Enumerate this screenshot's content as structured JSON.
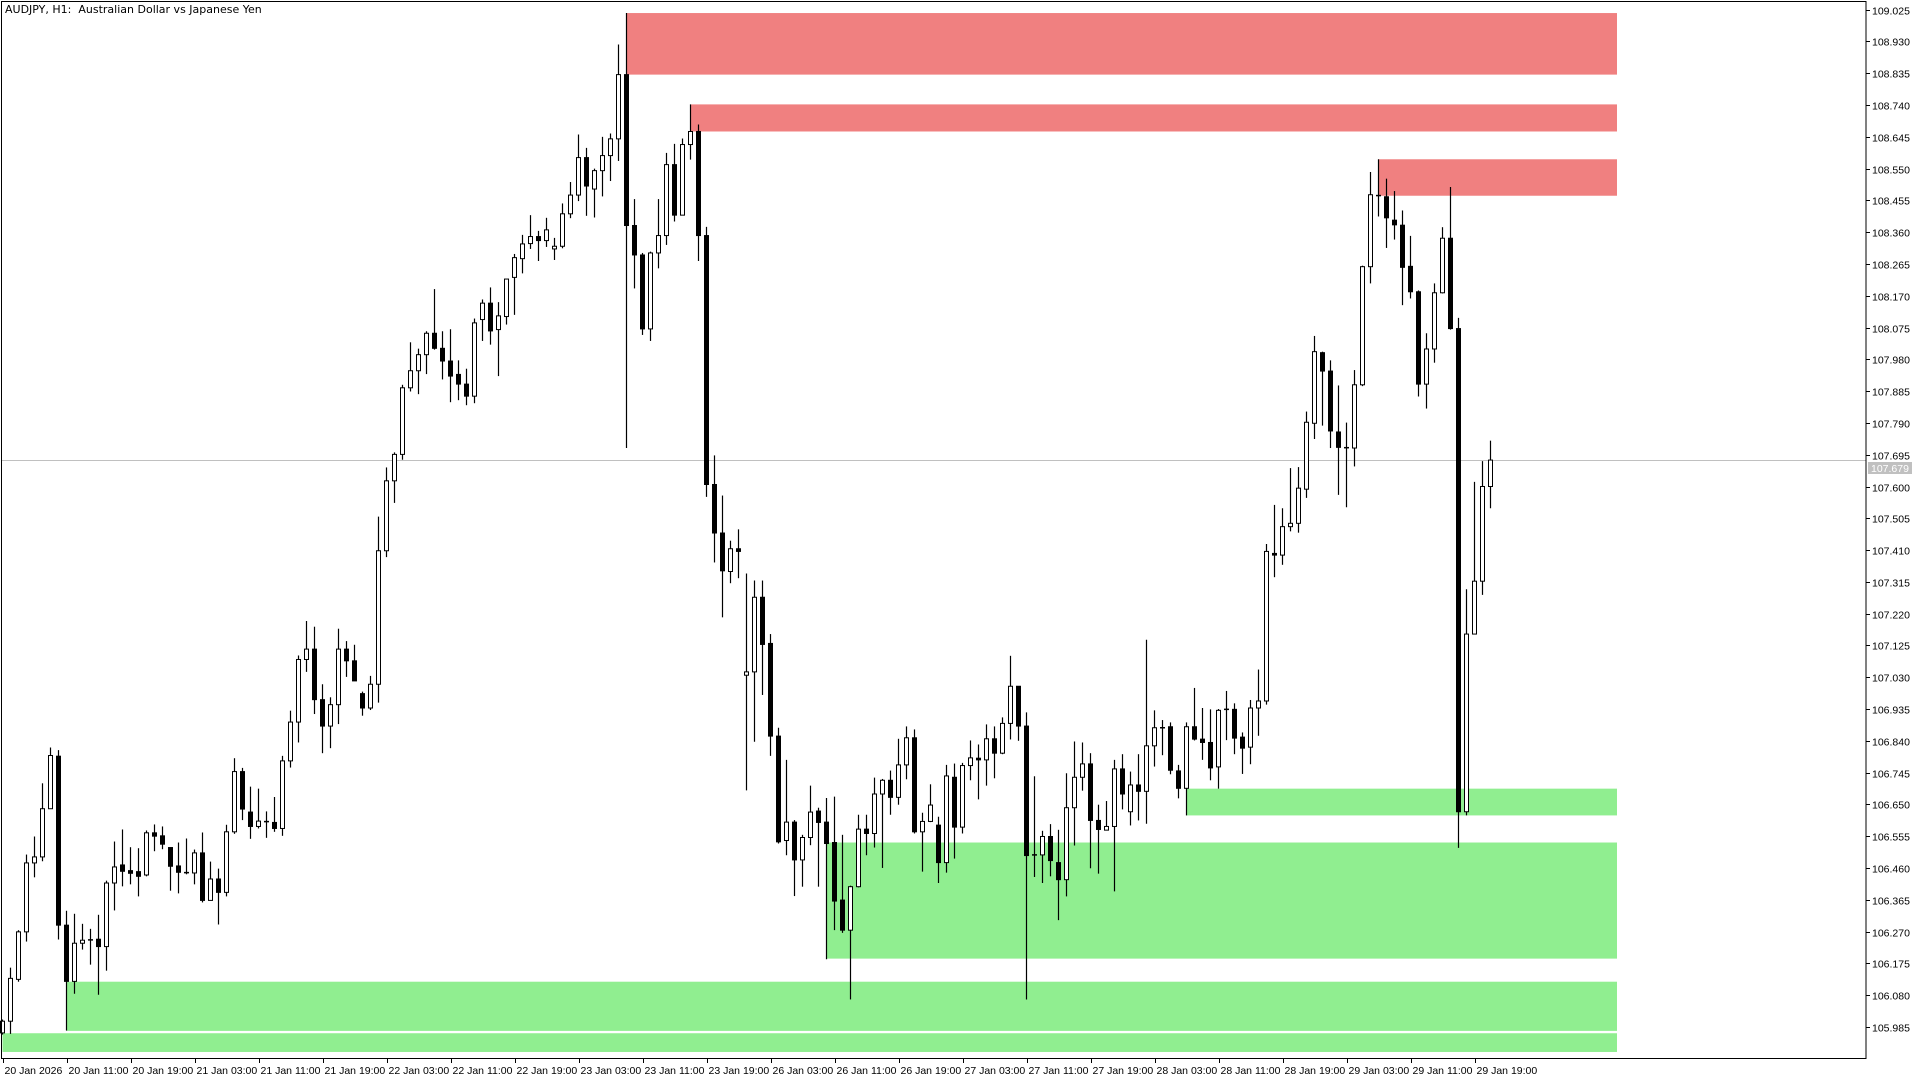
{
  "window": {
    "title": "AUDJPY, H1:  Australian Dollar vs Japanese Yen"
  },
  "chart_data": {
    "type": "candlestick",
    "symbol": "AUDJPY",
    "timeframe": "H1",
    "description": "Australian Dollar vs Japanese Yen",
    "ylim": [
      105.892,
      109.054
    ],
    "grid": false,
    "current_price": 107.679,
    "current_price_label": "107.679",
    "colors": {
      "bull_body": "#ffffff",
      "bear_body": "#000000",
      "outline": "#000000",
      "supply_zone": "#f08080",
      "demand_zone": "#90ee90",
      "price_line": "#c0c0c0"
    },
    "trading_days": [
      "20 Jan",
      "21 Jan",
      "22 Jan",
      "23 Jan",
      "26 Jan",
      "27 Jan",
      "28 Jan",
      "29 Jan"
    ],
    "first_bar_hour": 3,
    "y_ticks": [
      "109.025",
      "108.930",
      "108.835",
      "108.740",
      "108.645",
      "108.550",
      "108.455",
      "108.360",
      "108.265",
      "108.170",
      "108.075",
      "107.980",
      "107.885",
      "107.790",
      "107.695",
      "107.600",
      "107.505",
      "107.410",
      "107.315",
      "107.220",
      "107.125",
      "107.030",
      "106.935",
      "106.840",
      "106.745",
      "106.650",
      "106.555",
      "106.460",
      "106.365",
      "106.270",
      "106.175",
      "106.080",
      "105.985"
    ],
    "x_ticks": [
      "20 Jan 2026",
      "20 Jan 11:00",
      "20 Jan 19:00",
      "21 Jan 03:00",
      "21 Jan 11:00",
      "21 Jan 19:00",
      "22 Jan 03:00",
      "22 Jan 11:00",
      "22 Jan 19:00",
      "23 Jan 03:00",
      "23 Jan 11:00",
      "23 Jan 19:00",
      "26 Jan 03:00",
      "26 Jan 11:00",
      "26 Jan 19:00",
      "27 Jan 03:00",
      "27 Jan 11:00",
      "27 Jan 19:00",
      "28 Jan 03:00",
      "28 Jan 11:00",
      "28 Jan 19:00",
      "29 Jan 03:00",
      "29 Jan 11:00",
      "29 Jan 19:00"
    ],
    "zones": [
      {
        "kind": "supply",
        "start": "23 Jan 09:00",
        "top": 109.015,
        "bottom": 108.831
      },
      {
        "kind": "supply",
        "start": "23 Jan 17:00",
        "top": 108.742,
        "bottom": 108.661
      },
      {
        "kind": "supply",
        "start": "29 Jan 07:00",
        "top": 108.578,
        "bottom": 108.469
      },
      {
        "kind": "demand",
        "start": "28 Jan 07:00",
        "top": 106.697,
        "bottom": 106.617
      },
      {
        "kind": "demand",
        "start": "26 Jan 10:00",
        "top": 106.536,
        "bottom": 106.189
      },
      {
        "kind": "demand",
        "start": "20 Jan 11:00",
        "top": 106.12,
        "bottom": 105.973
      },
      {
        "kind": "demand",
        "start": "20 Jan 03:00",
        "top": 105.966,
        "bottom": 105.91
      }
    ],
    "ohlc_fields": [
      "open",
      "high",
      "low",
      "close"
    ],
    "ohlc": [
      [
        105.967,
        106.007,
        105.962,
        106.002
      ],
      [
        106.002,
        106.162,
        105.964,
        106.13
      ],
      [
        106.127,
        106.274,
        106.12,
        106.269
      ],
      [
        106.269,
        106.5,
        106.24,
        106.475
      ],
      [
        106.475,
        106.554,
        106.432,
        106.493
      ],
      [
        106.493,
        106.713,
        106.48,
        106.637
      ],
      [
        106.637,
        106.82,
        106.637,
        106.796
      ],
      [
        106.794,
        106.812,
        106.246,
        106.289
      ],
      [
        106.289,
        106.332,
        105.974,
        106.121
      ],
      [
        106.121,
        106.323,
        106.084,
        106.235
      ],
      [
        106.235,
        106.293,
        106.216,
        106.244
      ],
      [
        106.246,
        106.278,
        106.171,
        106.244
      ],
      [
        106.247,
        106.32,
        106.081,
        106.225
      ],
      [
        106.225,
        106.422,
        106.153,
        106.415
      ],
      [
        106.415,
        106.539,
        106.333,
        106.463
      ],
      [
        106.469,
        106.575,
        106.405,
        106.45
      ],
      [
        106.452,
        106.522,
        106.411,
        106.444
      ],
      [
        106.449,
        106.519,
        106.375,
        106.435
      ],
      [
        106.439,
        106.572,
        106.435,
        106.565
      ],
      [
        106.565,
        106.59,
        106.51,
        106.555
      ],
      [
        106.556,
        106.584,
        106.516,
        106.531
      ],
      [
        106.521,
        106.521,
        106.392,
        106.465
      ],
      [
        106.466,
        106.536,
        106.384,
        106.447
      ],
      [
        106.448,
        106.548,
        106.441,
        106.444
      ],
      [
        106.445,
        106.515,
        106.411,
        106.505
      ],
      [
        106.505,
        106.566,
        106.357,
        106.363
      ],
      [
        106.363,
        106.479,
        106.363,
        106.427
      ],
      [
        106.427,
        106.458,
        106.291,
        106.387
      ],
      [
        106.387,
        106.589,
        106.375,
        106.568
      ],
      [
        106.568,
        106.788,
        106.562,
        106.748
      ],
      [
        106.748,
        106.759,
        106.603,
        106.636
      ],
      [
        106.627,
        106.703,
        106.547,
        106.584
      ],
      [
        106.584,
        106.697,
        106.578,
        106.6
      ],
      [
        106.599,
        106.629,
        106.55,
        106.598
      ],
      [
        106.596,
        106.672,
        106.568,
        106.578
      ],
      [
        106.578,
        106.795,
        106.556,
        106.78
      ],
      [
        106.78,
        106.93,
        106.76,
        106.896
      ],
      [
        106.896,
        107.095,
        106.835,
        107.083
      ],
      [
        107.083,
        107.198,
        107.046,
        107.114
      ],
      [
        107.114,
        107.181,
        106.92,
        106.963
      ],
      [
        106.963,
        107.009,
        106.803,
        106.884
      ],
      [
        106.884,
        106.97,
        106.818,
        106.948
      ],
      [
        106.948,
        107.175,
        106.89,
        107.114
      ],
      [
        107.114,
        107.138,
        107.031,
        107.079
      ],
      [
        107.079,
        107.127,
        107.019,
        107.019
      ],
      [
        106.981,
        106.987,
        106.915,
        106.938
      ],
      [
        106.938,
        107.034,
        106.932,
        107.009
      ],
      [
        107.009,
        107.51,
        106.954,
        107.408
      ],
      [
        107.408,
        107.657,
        107.389,
        107.617
      ],
      [
        107.617,
        107.702,
        107.551,
        107.696
      ],
      [
        107.696,
        107.904,
        107.68,
        107.895
      ],
      [
        107.895,
        108.031,
        107.884,
        107.946
      ],
      [
        107.946,
        108.012,
        107.876,
        107.994
      ],
      [
        107.994,
        108.064,
        107.936,
        108.058
      ],
      [
        108.058,
        108.19,
        108.009,
        108.013
      ],
      [
        108.013,
        108.064,
        107.92,
        107.975
      ],
      [
        107.975,
        108.07,
        107.852,
        107.93
      ],
      [
        107.935,
        107.977,
        107.858,
        107.906
      ],
      [
        107.906,
        107.952,
        107.843,
        107.87
      ],
      [
        107.87,
        108.102,
        107.849,
        108.089
      ],
      [
        108.099,
        108.159,
        108.035,
        108.148
      ],
      [
        108.148,
        108.195,
        108.024,
        108.065
      ],
      [
        108.069,
        108.151,
        107.93,
        108.11
      ],
      [
        108.108,
        108.22,
        108.084,
        108.22
      ],
      [
        108.225,
        108.295,
        108.113,
        108.284
      ],
      [
        108.281,
        108.352,
        108.237,
        108.325
      ],
      [
        108.326,
        108.411,
        108.31,
        108.347
      ],
      [
        108.347,
        108.364,
        108.274,
        108.335
      ],
      [
        108.335,
        108.403,
        108.316,
        108.367
      ],
      [
        108.31,
        108.343,
        108.277,
        108.318
      ],
      [
        108.318,
        108.446,
        108.312,
        108.415
      ],
      [
        108.415,
        108.51,
        108.402,
        108.471
      ],
      [
        108.471,
        108.652,
        108.453,
        108.583
      ],
      [
        108.583,
        108.612,
        108.409,
        108.498
      ],
      [
        108.489,
        108.55,
        108.404,
        108.544
      ],
      [
        108.544,
        108.645,
        108.467,
        108.589
      ],
      [
        108.589,
        108.655,
        108.513,
        108.639
      ],
      [
        108.639,
        108.921,
        108.573,
        108.831
      ],
      [
        108.831,
        109.015,
        107.715,
        108.38
      ],
      [
        108.38,
        108.459,
        108.192,
        108.292
      ],
      [
        108.292,
        108.298,
        108.053,
        108.071
      ],
      [
        108.071,
        108.302,
        108.035,
        108.298
      ],
      [
        108.298,
        108.459,
        108.252,
        108.35
      ],
      [
        108.35,
        108.597,
        108.322,
        108.562
      ],
      [
        108.562,
        108.624,
        108.392,
        108.411
      ],
      [
        108.411,
        108.64,
        108.411,
        108.622
      ],
      [
        108.622,
        108.742,
        108.577,
        108.661
      ],
      [
        108.661,
        108.682,
        108.274,
        108.35
      ],
      [
        108.35,
        108.376,
        107.569,
        107.606
      ],
      [
        107.606,
        107.693,
        107.373,
        107.461
      ],
      [
        107.461,
        107.573,
        107.209,
        107.348
      ],
      [
        107.346,
        107.438,
        107.311,
        107.414
      ],
      [
        107.414,
        107.472,
        107.326,
        107.406
      ],
      [
        107.036,
        107.34,
        106.692,
        107.046
      ],
      [
        107.046,
        107.319,
        106.837,
        107.269
      ],
      [
        107.269,
        107.319,
        106.977,
        107.128
      ],
      [
        107.131,
        107.159,
        106.795,
        106.854
      ],
      [
        106.854,
        106.879,
        106.533,
        106.538
      ],
      [
        106.542,
        106.783,
        106.498,
        106.597
      ],
      [
        106.597,
        106.603,
        106.376,
        106.484
      ],
      [
        106.484,
        106.559,
        106.404,
        106.551
      ],
      [
        106.551,
        106.706,
        106.528,
        106.627
      ],
      [
        106.63,
        106.64,
        106.404,
        106.596
      ],
      [
        106.597,
        106.669,
        106.187,
        106.533
      ],
      [
        106.536,
        106.673,
        106.274,
        106.361
      ],
      [
        106.364,
        106.559,
        106.266,
        106.274
      ],
      [
        106.274,
        106.407,
        106.067,
        106.404
      ],
      [
        106.404,
        106.619,
        106.402,
        106.576
      ],
      [
        106.576,
        106.619,
        106.498,
        106.563
      ],
      [
        106.563,
        106.73,
        106.521,
        106.681
      ],
      [
        106.681,
        106.726,
        106.46,
        106.722
      ],
      [
        106.722,
        106.751,
        106.619,
        106.671
      ],
      [
        106.671,
        106.846,
        106.649,
        106.768
      ],
      [
        106.768,
        106.883,
        106.725,
        106.849
      ],
      [
        106.849,
        106.874,
        106.563,
        106.568
      ],
      [
        106.568,
        106.625,
        106.449,
        106.599
      ],
      [
        106.599,
        106.71,
        106.597,
        106.648
      ],
      [
        106.588,
        106.613,
        106.415,
        106.476
      ],
      [
        106.476,
        106.768,
        106.446,
        106.735
      ],
      [
        106.731,
        106.772,
        106.488,
        106.582
      ],
      [
        106.582,
        106.774,
        106.563,
        106.766
      ],
      [
        106.766,
        106.841,
        106.722,
        106.789
      ],
      [
        106.788,
        106.829,
        106.665,
        106.783
      ],
      [
        106.783,
        106.889,
        106.706,
        106.846
      ],
      [
        106.846,
        106.883,
        106.728,
        106.803
      ],
      [
        106.803,
        106.91,
        106.8,
        106.892
      ],
      [
        106.892,
        107.094,
        106.844,
        107.003
      ],
      [
        107.003,
        107.003,
        106.84,
        106.884
      ],
      [
        106.884,
        106.925,
        106.067,
        106.497
      ],
      [
        106.499,
        106.734,
        106.433,
        106.499
      ],
      [
        106.499,
        106.571,
        106.415,
        106.554
      ],
      [
        106.554,
        106.591,
        106.435,
        106.482
      ],
      [
        106.476,
        106.574,
        106.304,
        106.425
      ],
      [
        106.425,
        106.743,
        106.375,
        106.64
      ],
      [
        106.64,
        106.838,
        106.527,
        106.731
      ],
      [
        106.731,
        106.835,
        106.691,
        106.771
      ],
      [
        106.771,
        106.803,
        106.459,
        106.602
      ],
      [
        106.602,
        106.649,
        106.443,
        106.575
      ],
      [
        106.573,
        106.66,
        106.573,
        106.584
      ],
      [
        106.584,
        106.783,
        106.39,
        106.756
      ],
      [
        106.756,
        106.8,
        106.635,
        106.681
      ],
      [
        106.628,
        106.748,
        106.587,
        106.708
      ],
      [
        106.708,
        106.8,
        106.602,
        106.689
      ],
      [
        106.689,
        107.142,
        106.592,
        106.825
      ],
      [
        106.825,
        106.931,
        106.763,
        106.879
      ],
      [
        106.879,
        106.902,
        106.797,
        106.879
      ],
      [
        106.882,
        106.895,
        106.74,
        106.752
      ],
      [
        106.75,
        106.768,
        106.668,
        106.698
      ],
      [
        106.698,
        106.895,
        106.617,
        106.882
      ],
      [
        106.882,
        106.998,
        106.841,
        106.845
      ],
      [
        106.845,
        106.938,
        106.783,
        106.835
      ],
      [
        106.835,
        106.934,
        106.722,
        106.759
      ],
      [
        106.762,
        106.935,
        106.697,
        106.931
      ],
      [
        106.934,
        106.989,
        106.842,
        106.934
      ],
      [
        106.934,
        106.952,
        106.8,
        106.848
      ],
      [
        106.851,
        106.865,
        106.741,
        106.818
      ],
      [
        106.821,
        106.962,
        106.77,
        106.938
      ],
      [
        106.938,
        107.053,
        106.855,
        106.959
      ],
      [
        106.959,
        107.428,
        106.948,
        107.406
      ],
      [
        107.4,
        107.545,
        107.329,
        107.395
      ],
      [
        107.395,
        107.535,
        107.366,
        107.48
      ],
      [
        107.48,
        107.655,
        107.466,
        107.49
      ],
      [
        107.49,
        107.658,
        107.462,
        107.595
      ],
      [
        107.592,
        107.824,
        107.566,
        107.792
      ],
      [
        107.789,
        108.05,
        107.742,
        108.003
      ],
      [
        108.0,
        108.003,
        107.782,
        107.945
      ],
      [
        107.945,
        107.977,
        107.715,
        107.766
      ],
      [
        107.763,
        107.902,
        107.575,
        107.717
      ],
      [
        107.717,
        107.791,
        107.538,
        107.715
      ],
      [
        107.715,
        107.948,
        107.66,
        107.904
      ],
      [
        107.904,
        108.26,
        107.9,
        108.257
      ],
      [
        108.257,
        108.54,
        108.207,
        108.472
      ],
      [
        108.471,
        108.578,
        108.407,
        108.468
      ],
      [
        108.466,
        108.52,
        108.313,
        108.403
      ],
      [
        108.396,
        108.483,
        108.338,
        108.382
      ],
      [
        108.381,
        108.425,
        108.142,
        108.255
      ],
      [
        108.258,
        108.349,
        108.162,
        108.182
      ],
      [
        108.182,
        108.186,
        107.869,
        107.906
      ],
      [
        107.906,
        108.058,
        107.833,
        108.011
      ],
      [
        108.011,
        108.207,
        107.97,
        108.179
      ],
      [
        108.179,
        108.375,
        108.177,
        108.342
      ],
      [
        108.342,
        108.495,
        108.069,
        108.072
      ],
      [
        108.072,
        108.104,
        106.52,
        106.628
      ],
      [
        106.628,
        107.293,
        106.617,
        107.159
      ],
      [
        107.159,
        107.614,
        107.159,
        107.317
      ],
      [
        107.317,
        107.676,
        107.276,
        107.6
      ],
      [
        107.6,
        107.737,
        107.535,
        107.679
      ]
    ]
  }
}
